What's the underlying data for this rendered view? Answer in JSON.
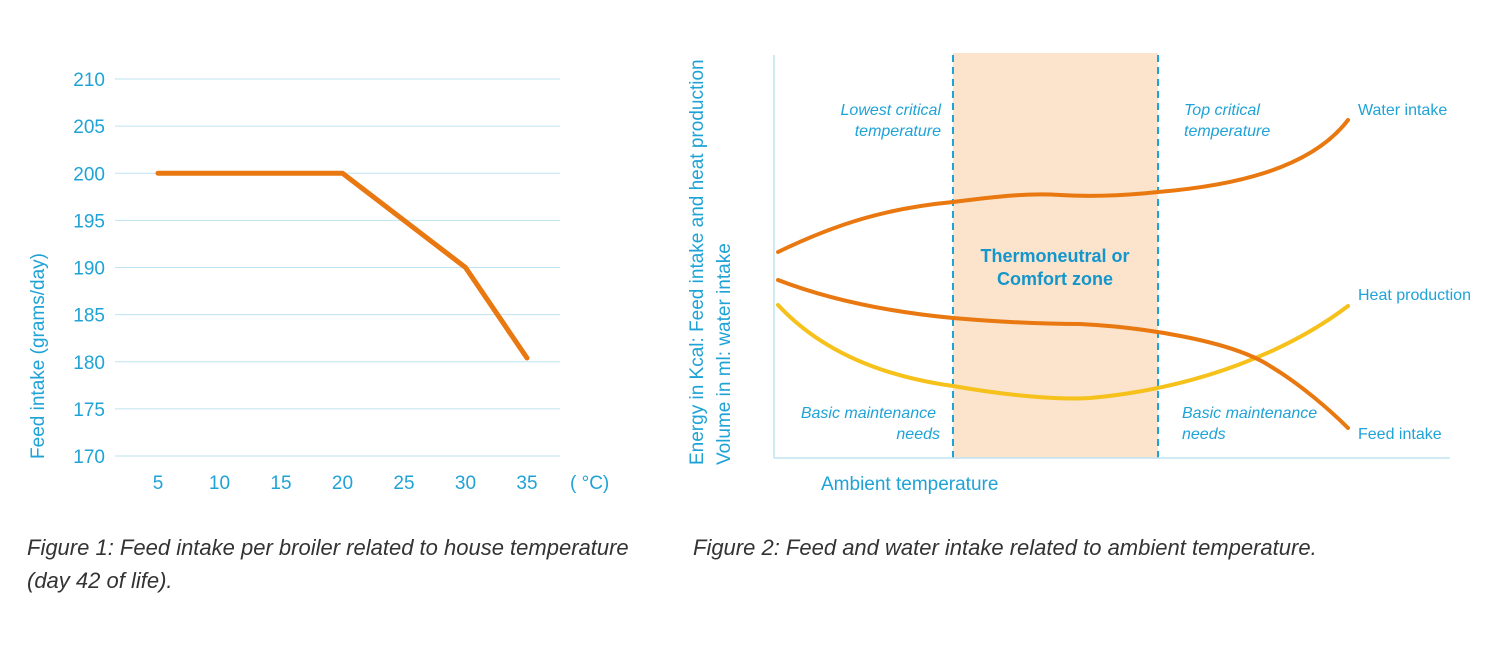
{
  "colors": {
    "accent_text": "#1fa3d6",
    "grid": "#bfe3f2",
    "feed_line": "#e8780f",
    "heat_line": "#f5c11a",
    "zone_fill": "#fbe3cc",
    "caption_text": "#333333"
  },
  "chart_data": [
    {
      "type": "line",
      "title": "",
      "xlabel": "",
      "x_unit_label": "( °C)",
      "ylabel": "Feed intake (grams/day)",
      "x_ticks": [
        5,
        10,
        15,
        20,
        25,
        30,
        35
      ],
      "y_ticks": [
        170,
        175,
        180,
        185,
        190,
        195,
        200,
        205,
        210
      ],
      "xlim": [
        5,
        35
      ],
      "ylim": [
        170,
        210
      ],
      "grid": true,
      "series": [
        {
          "x": [
            5,
            20,
            30,
            35
          ],
          "y": [
            200,
            200,
            190,
            180.4
          ]
        }
      ]
    },
    {
      "type": "line",
      "title": "",
      "xlabel": "Ambient temperature",
      "ylabel_lines": [
        "Energy in Kcal: Feed intake and heat production",
        "Volume in ml: water intake"
      ],
      "zone_label_lines": [
        "Thermoneutral or",
        "Comfort zone"
      ],
      "annotations": {
        "lowest_critical": [
          "Lowest critical",
          "temperature"
        ],
        "top_critical": [
          "Top critical",
          "temperature"
        ],
        "basic_left": [
          "Basic maintenance",
          "needs"
        ],
        "basic_right": [
          "Basic maintenance",
          "needs"
        ]
      },
      "series": [
        {
          "name": "Water intake"
        },
        {
          "name": "Heat production"
        },
        {
          "name": "Feed intake"
        }
      ]
    }
  ],
  "captions": {
    "figure1_line1": "Figure 1: Feed intake per broiler related to house temperature",
    "figure1_line2": "(day 42 of life).",
    "figure2": "Figure 2: Feed and water intake related to ambient temperature."
  }
}
